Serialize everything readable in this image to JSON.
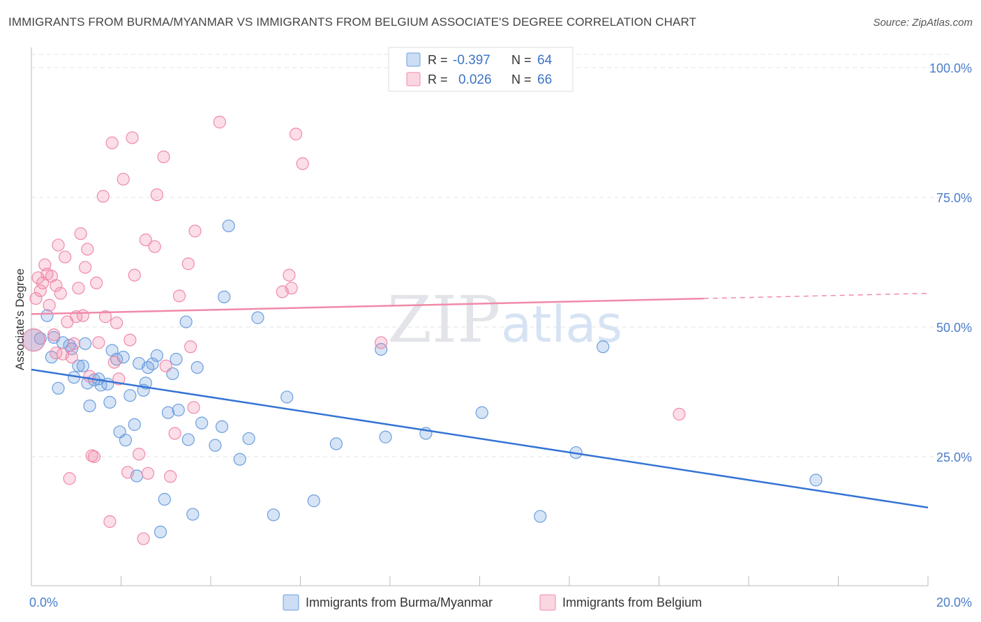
{
  "title": "IMMIGRANTS FROM BURMA/MYANMAR VS IMMIGRANTS FROM BELGIUM ASSOCIATE'S DEGREE CORRELATION CHART",
  "source": "Source: ZipAtlas.com",
  "watermark": {
    "zip": "ZIP",
    "atlas": "atlas"
  },
  "legend": {
    "r_label": "R =",
    "n_label": "N =",
    "rows": [
      {
        "r": "-0.397",
        "n": "64",
        "color": "#6d9ee0"
      },
      {
        "r": "0.026",
        "n": "66",
        "color": "#f08aa8"
      }
    ]
  },
  "chart_data": {
    "type": "scatter",
    "title": "IMMIGRANTS FROM BURMA/MYANMAR VS IMMIGRANTS FROM BELGIUM ASSOCIATE'S DEGREE CORRELATION CHART",
    "xlabel": "",
    "ylabel": "Associate's Degree",
    "xlim": [
      0,
      20
    ],
    "ylim": [
      0,
      105
    ],
    "x_ticks": [
      0,
      20
    ],
    "x_tick_labels": [
      "0.0%",
      "20.0%"
    ],
    "y_ticks": [
      25,
      50,
      75,
      100
    ],
    "y_tick_labels": [
      "25.0%",
      "50.0%",
      "75.0%",
      "100.0%"
    ],
    "grid": true,
    "series": [
      {
        "name": "Immigrants from Burma/Myanmar",
        "color": "#6d9ee0",
        "fill": "rgba(109,158,224,0.28)",
        "trend": {
          "x0": 0,
          "y0": 41.8,
          "x1": 20,
          "y1": 15.2,
          "dashed_from": null
        },
        "points": [
          [
            0.05,
            47.5
          ],
          [
            0.2,
            47.8
          ],
          [
            0.35,
            52.2
          ],
          [
            0.45,
            44.2
          ],
          [
            0.6,
            38.2
          ],
          [
            0.7,
            47.0
          ],
          [
            0.85,
            46.5
          ],
          [
            0.9,
            45.8
          ],
          [
            0.95,
            40.3
          ],
          [
            1.05,
            42.5
          ],
          [
            1.15,
            42.5
          ],
          [
            1.2,
            46.8
          ],
          [
            1.3,
            34.8
          ],
          [
            1.4,
            39.8
          ],
          [
            1.5,
            40.0
          ],
          [
            1.55,
            38.8
          ],
          [
            1.7,
            39.0
          ],
          [
            1.75,
            35.5
          ],
          [
            1.8,
            45.5
          ],
          [
            1.9,
            43.8
          ],
          [
            1.97,
            29.8
          ],
          [
            2.05,
            44.2
          ],
          [
            2.1,
            28.2
          ],
          [
            2.2,
            36.8
          ],
          [
            2.3,
            31.2
          ],
          [
            2.4,
            43.0
          ],
          [
            2.5,
            37.8
          ],
          [
            2.55,
            39.2
          ],
          [
            2.6,
            42.2
          ],
          [
            2.7,
            42.9
          ],
          [
            2.8,
            44.5
          ],
          [
            2.88,
            10.5
          ],
          [
            2.97,
            16.8
          ],
          [
            3.05,
            33.5
          ],
          [
            3.15,
            41.0
          ],
          [
            3.23,
            43.8
          ],
          [
            3.28,
            34.0
          ],
          [
            3.45,
            51.0
          ],
          [
            3.5,
            28.3
          ],
          [
            3.7,
            42.2
          ],
          [
            3.8,
            31.5
          ],
          [
            4.1,
            27.2
          ],
          [
            4.25,
            30.8
          ],
          [
            4.4,
            69.5
          ],
          [
            4.65,
            24.5
          ],
          [
            4.85,
            28.5
          ],
          [
            5.05,
            51.8
          ],
          [
            5.4,
            13.8
          ],
          [
            5.7,
            36.5
          ],
          [
            6.3,
            16.5
          ],
          [
            6.8,
            27.5
          ],
          [
            7.8,
            45.7
          ],
          [
            7.9,
            28.8
          ],
          [
            8.8,
            29.5
          ],
          [
            10.05,
            33.5
          ],
          [
            11.35,
            13.5
          ],
          [
            12.15,
            25.8
          ],
          [
            12.75,
            46.2
          ],
          [
            17.5,
            20.5
          ],
          [
            3.6,
            13.9
          ],
          [
            4.3,
            55.8
          ],
          [
            2.35,
            21.3
          ],
          [
            1.25,
            39.2
          ],
          [
            0.5,
            48.0
          ]
        ]
      },
      {
        "name": "Immigrants from Belgium",
        "color": "#f08aa8",
        "fill": "rgba(240,138,168,0.28)",
        "trend": {
          "x0": 0,
          "y0": 52.5,
          "x1": 20,
          "y1": 56.5,
          "dashed_from": 15.0
        },
        "points": [
          [
            0.05,
            47.5
          ],
          [
            0.1,
            55.5
          ],
          [
            0.15,
            59.5
          ],
          [
            0.2,
            57.0
          ],
          [
            0.25,
            58.5
          ],
          [
            0.3,
            62.0
          ],
          [
            0.35,
            60.2
          ],
          [
            0.4,
            54.2
          ],
          [
            0.45,
            59.8
          ],
          [
            0.5,
            48.5
          ],
          [
            0.55,
            58.0
          ],
          [
            0.6,
            65.8
          ],
          [
            0.65,
            56.5
          ],
          [
            0.7,
            44.8
          ],
          [
            0.75,
            63.5
          ],
          [
            0.8,
            51.0
          ],
          [
            0.85,
            20.8
          ],
          [
            0.9,
            44.2
          ],
          [
            0.95,
            46.8
          ],
          [
            1.0,
            52.0
          ],
          [
            1.05,
            57.5
          ],
          [
            1.1,
            68.0
          ],
          [
            1.15,
            52.2
          ],
          [
            1.2,
            61.5
          ],
          [
            1.25,
            65.0
          ],
          [
            1.3,
            40.5
          ],
          [
            1.35,
            25.2
          ],
          [
            1.4,
            25.0
          ],
          [
            1.45,
            58.5
          ],
          [
            1.5,
            47.0
          ],
          [
            1.6,
            75.2
          ],
          [
            1.65,
            52.0
          ],
          [
            1.75,
            12.5
          ],
          [
            1.8,
            85.5
          ],
          [
            1.85,
            43.2
          ],
          [
            1.95,
            40.0
          ],
          [
            2.05,
            78.5
          ],
          [
            2.15,
            22.0
          ],
          [
            2.25,
            86.5
          ],
          [
            2.3,
            60.0
          ],
          [
            2.4,
            25.5
          ],
          [
            2.5,
            9.2
          ],
          [
            2.55,
            66.8
          ],
          [
            2.6,
            21.8
          ],
          [
            2.75,
            65.5
          ],
          [
            2.8,
            75.5
          ],
          [
            2.95,
            82.8
          ],
          [
            3.1,
            21.2
          ],
          [
            3.2,
            29.5
          ],
          [
            3.3,
            56.0
          ],
          [
            3.5,
            62.2
          ],
          [
            3.55,
            46.2
          ],
          [
            3.62,
            34.5
          ],
          [
            3.65,
            68.5
          ],
          [
            4.2,
            89.5
          ],
          [
            5.6,
            56.8
          ],
          [
            5.75,
            60.0
          ],
          [
            5.8,
            57.5
          ],
          [
            5.9,
            87.2
          ],
          [
            6.05,
            81.5
          ],
          [
            7.8,
            47.0
          ],
          [
            14.45,
            33.2
          ],
          [
            2.2,
            47.5
          ],
          [
            1.9,
            50.8
          ],
          [
            0.55,
            45.0
          ],
          [
            3.0,
            42.5
          ]
        ]
      }
    ]
  }
}
